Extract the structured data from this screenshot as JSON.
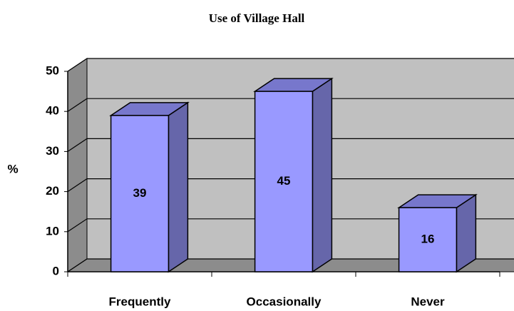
{
  "chart_data": {
    "type": "bar3d",
    "title": "Use of Village Hall",
    "y_label": "%",
    "categories": [
      "Frequently",
      "Occasionally",
      "Never"
    ],
    "values": [
      39,
      45,
      16
    ],
    "color": "#9999ff",
    "ylim": [
      0,
      50
    ],
    "yticks": [
      0,
      10,
      20,
      30,
      40,
      50
    ],
    "grid": true
  }
}
